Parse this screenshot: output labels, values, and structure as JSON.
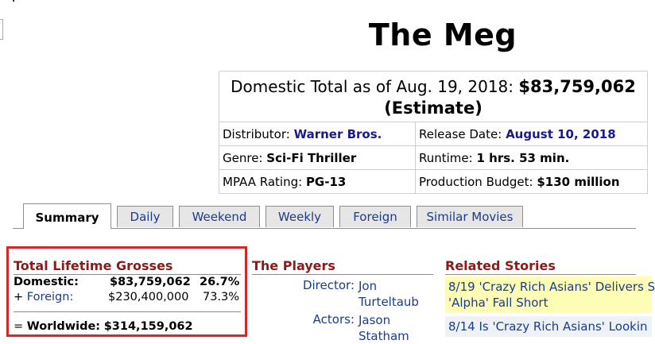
{
  "movie": {
    "title": "The Meg"
  },
  "summary": {
    "total_label": "Domestic Total as of Aug. 19, 2018:",
    "total_value": "$83,759,062",
    "total_note": "(Estimate)",
    "distributor_label": "Distributor:",
    "distributor": "Warner Bros.",
    "release_label": "Release Date:",
    "release_date": "August 10, 2018",
    "genre_label": "Genre:",
    "genre": "Sci-Fi Thriller",
    "runtime_label": "Runtime:",
    "runtime": "1 hrs. 53 min.",
    "mpaa_label": "MPAA Rating:",
    "mpaa": "PG-13",
    "budget_label": "Production Budget:",
    "budget": "$130 million"
  },
  "tabs": [
    {
      "label": "Summary",
      "active": true
    },
    {
      "label": "Daily"
    },
    {
      "label": "Weekend"
    },
    {
      "label": "Weekly"
    },
    {
      "label": "Foreign"
    },
    {
      "label": "Similar Movies"
    }
  ],
  "grosses": {
    "title": "Total Lifetime Grosses",
    "domestic_label": "Domestic:",
    "domestic_value": "$83,759,062",
    "domestic_pct": "26.7%",
    "foreign_prefix": "+ ",
    "foreign_label": "Foreign:",
    "foreign_value": "$230,400,000",
    "foreign_pct": "73.3%",
    "worldwide_prefix": "= ",
    "worldwide_label": "Worldwide:",
    "worldwide_value": "$314,159,062"
  },
  "players": {
    "title": "The Players",
    "director_label": "Director:",
    "director_line1": "Jon",
    "director_line2": "Turteltaub",
    "actors_label": "Actors:",
    "actors_line1": "Jason",
    "actors_line2": "Statham"
  },
  "stories": {
    "title": "Related Stories",
    "items": [
      {
        "line1": "8/19 'Crazy Rich Asians' Delivers S",
        "line2": "'Alpha' Fall Short"
      },
      {
        "line1": "8/14 Is 'Crazy Rich Asians' Lookin"
      }
    ]
  }
}
